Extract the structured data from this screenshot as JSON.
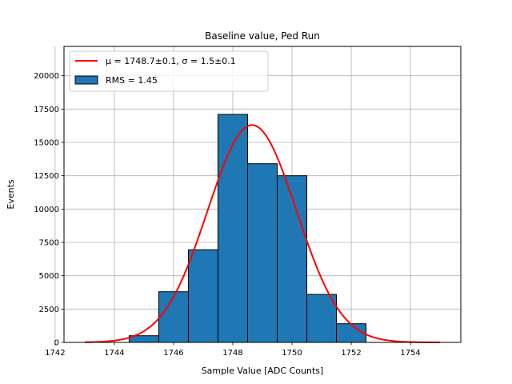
{
  "chart_data": {
    "type": "bar",
    "title": "Baseline value, Ped Run",
    "xlabel": "Sample Value [ADC Counts]",
    "ylabel": "Events",
    "xlim": [
      1742.3,
      1755.7
    ],
    "ylim": [
      0,
      22200
    ],
    "xticks": [
      "1742",
      "1744",
      "1746",
      "1748",
      "1750",
      "1752",
      "1754"
    ],
    "xtick_values": [
      1742,
      1744,
      1746,
      1748,
      1750,
      1752,
      1754
    ],
    "yticks": [
      "0",
      "2500",
      "5000",
      "7500",
      "10000",
      "12500",
      "15000",
      "17500",
      "20000"
    ],
    "ytick_values": [
      0,
      2500,
      5000,
      7500,
      10000,
      12500,
      15000,
      17500,
      20000
    ],
    "grid": true,
    "legend_position": "top-left",
    "histogram": {
      "name": "RMS = 1.45",
      "color": "#1f77b4",
      "edge_color": "#000000",
      "bins": [
        {
          "x0": 1744.5,
          "x1": 1745.5,
          "value": 500
        },
        {
          "x0": 1745.5,
          "x1": 1746.5,
          "value": 3800
        },
        {
          "x0": 1746.5,
          "x1": 1747.5,
          "value": 6950
        },
        {
          "x0": 1747.5,
          "x1": 1748.5,
          "value": 17100
        },
        {
          "x0": 1748.5,
          "x1": 1749.5,
          "value": 13400
        },
        {
          "x0": 1749.5,
          "x1": 1750.5,
          "value": 12500
        },
        {
          "x0": 1750.5,
          "x1": 1751.5,
          "value": 3600
        },
        {
          "x0": 1751.5,
          "x1": 1752.5,
          "value": 1400
        }
      ]
    },
    "fit": {
      "name": "μ = 1748.7±0.1, σ = 1.5±0.1",
      "color": "#ff0000",
      "mu": 1748.65,
      "sigma": 1.5,
      "amplitude": 16300,
      "x_range": [
        1743,
        1755
      ]
    }
  }
}
